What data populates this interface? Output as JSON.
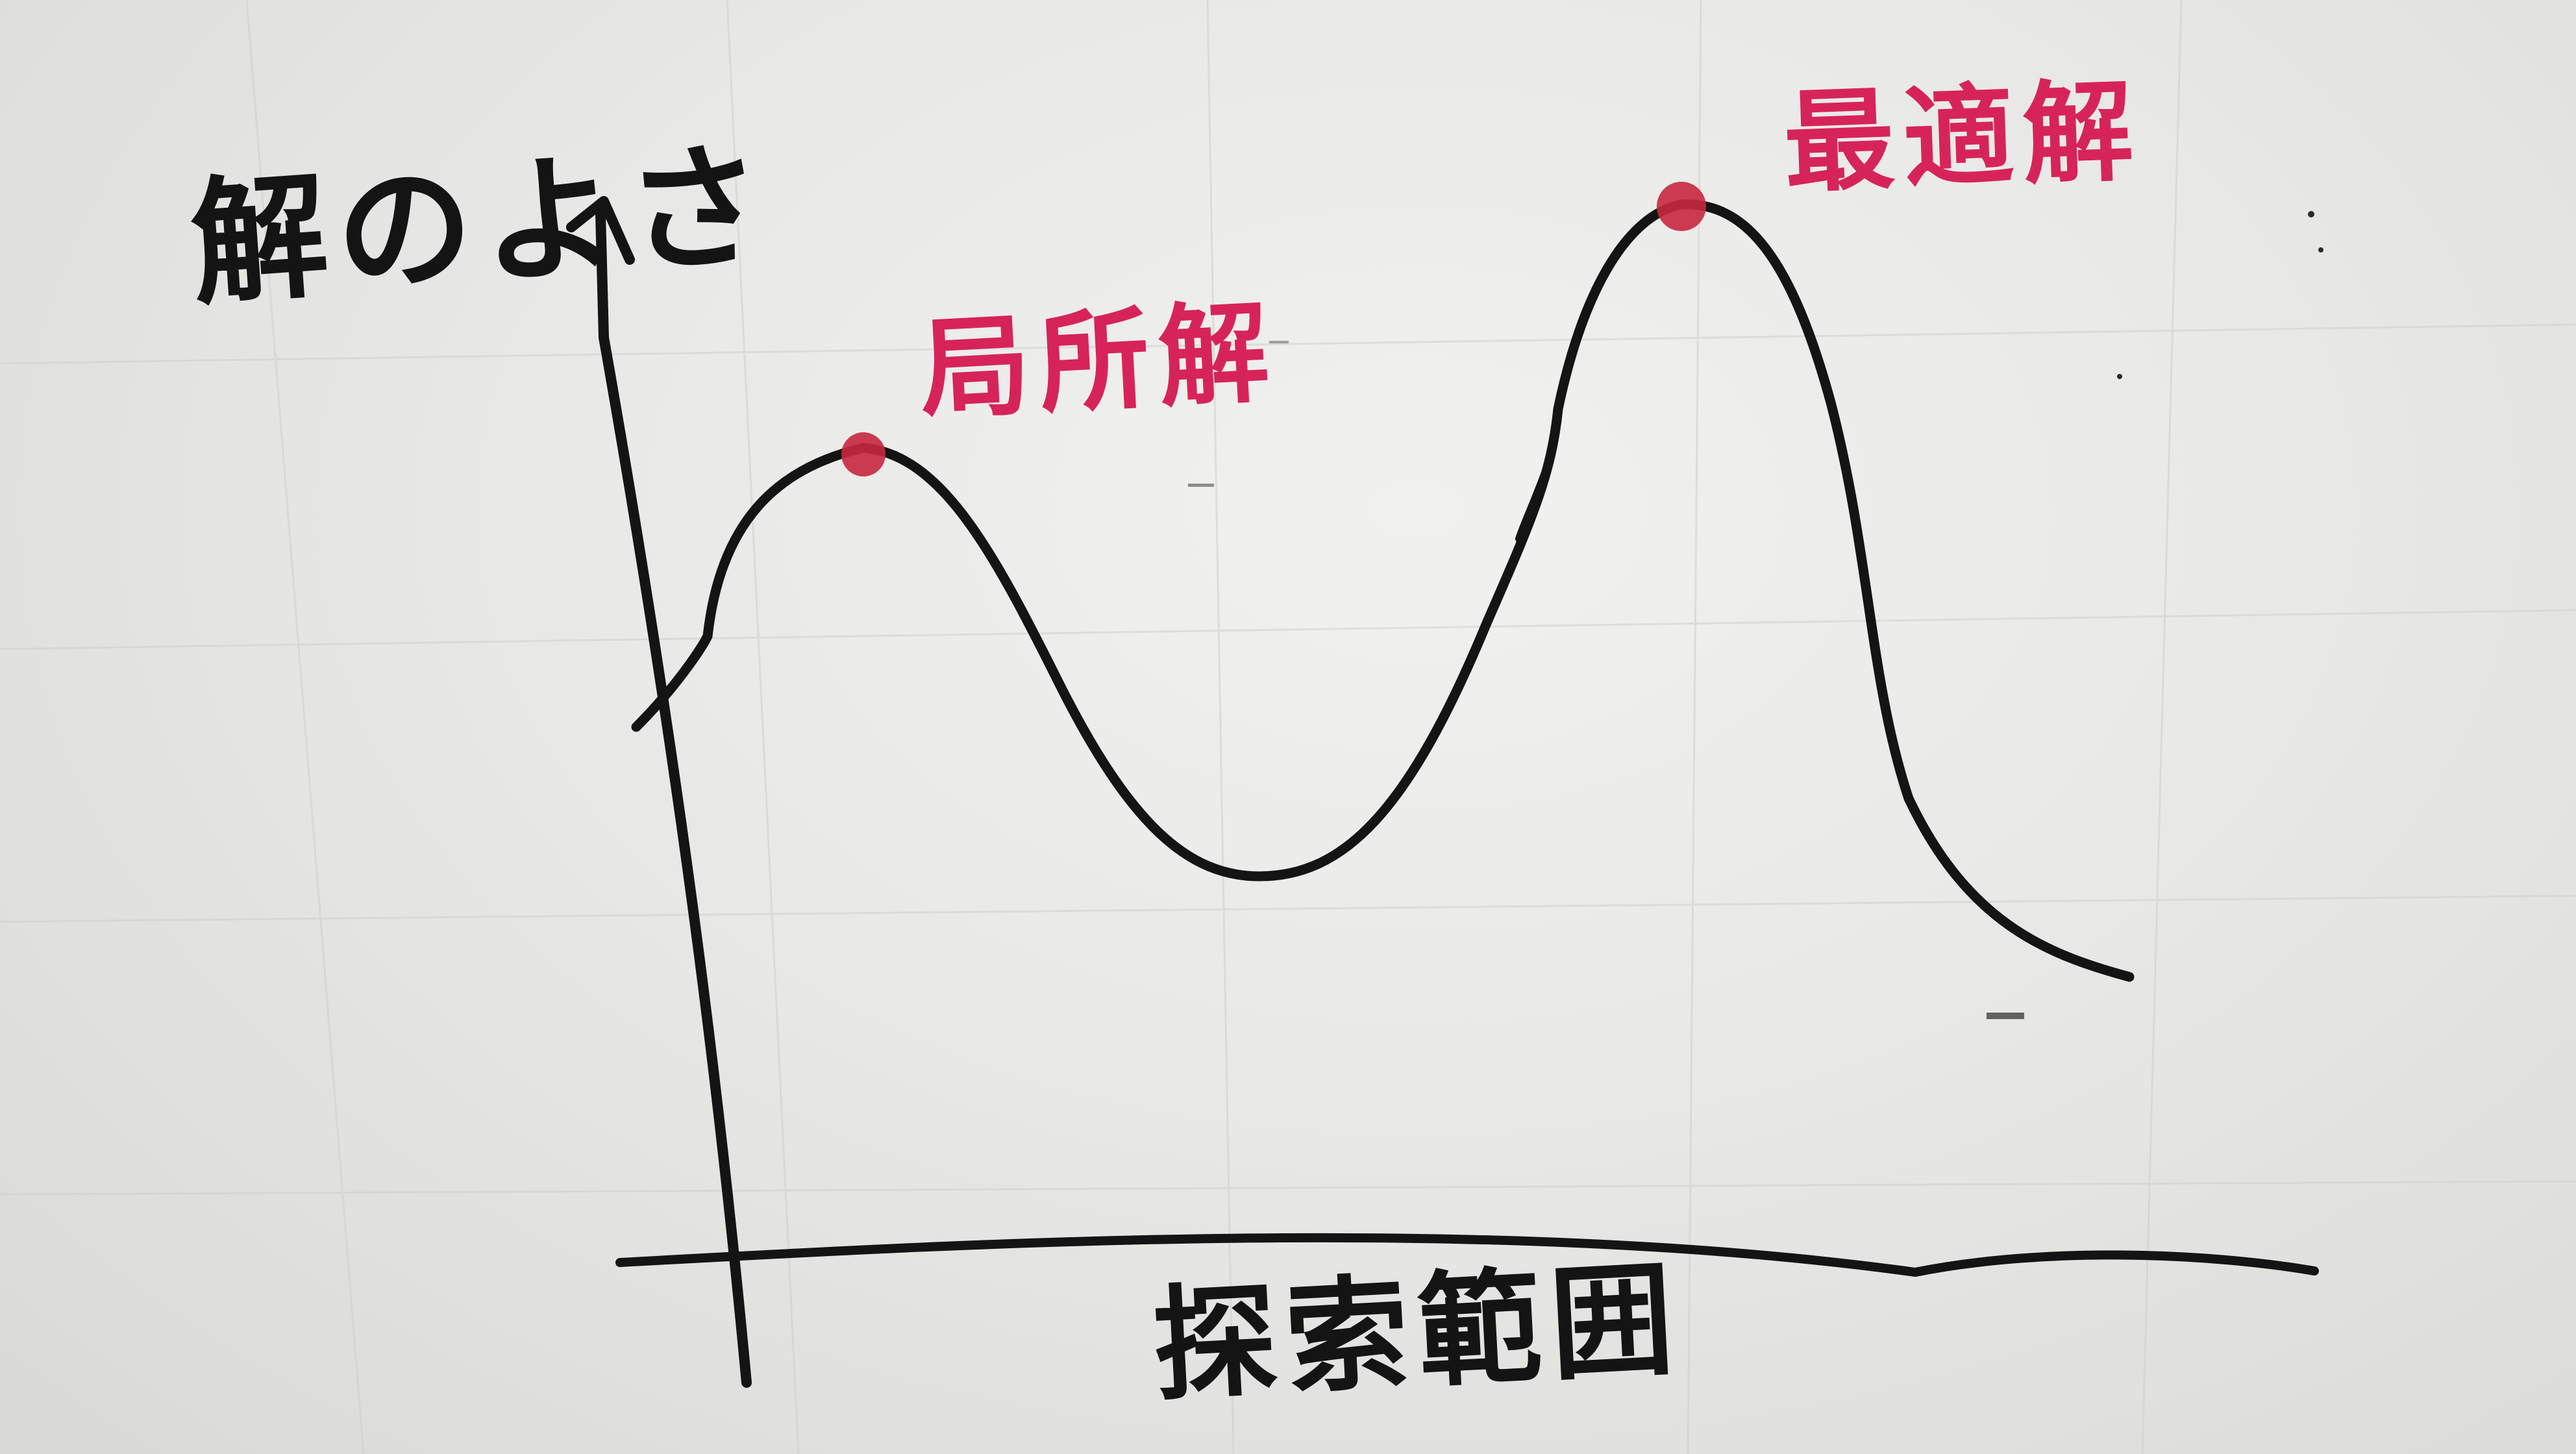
{
  "diagram": {
    "y_axis_label": "解のよさ",
    "x_axis_label": "探索範囲",
    "local_optimum_label": "局所解",
    "global_optimum_label": "最適解"
  },
  "colors": {
    "board": "#e8e8e6",
    "black_marker": "#141414",
    "red_marker": "#d6245a",
    "peak_dot": "#c8283f"
  }
}
